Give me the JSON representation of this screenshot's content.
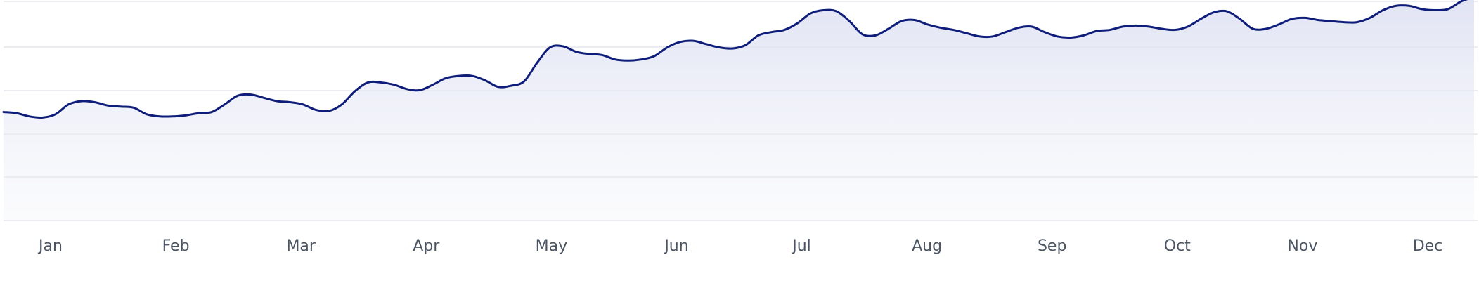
{
  "chart_data": {
    "type": "area",
    "title": "",
    "xlabel": "",
    "ylabel": "",
    "grid": true,
    "ylim": [
      0,
      100
    ],
    "x_tick_labels": [
      "Jan",
      "Feb",
      "Mar",
      "Apr",
      "May",
      "Jun",
      "Jul",
      "Aug",
      "Sep",
      "Oct",
      "Nov",
      "Dec"
    ],
    "colors": {
      "line": "#0f1d7a",
      "fill": "#e3e5f5",
      "grid": "#e5e7eb"
    },
    "series": [
      {
        "values": [
          49.5,
          49,
          47.5,
          47,
          48.5,
          53,
          54.5,
          54,
          52.5,
          52,
          51.5,
          48.5,
          47.5,
          47.5,
          48,
          49,
          49.5,
          53,
          57,
          57.5,
          56,
          54.5,
          54,
          53,
          50.5,
          50,
          53,
          59,
          63,
          63,
          62,
          60,
          59.5,
          62,
          65,
          66,
          66,
          64,
          61,
          61.5,
          63.5,
          72,
          79,
          79.5,
          77,
          76,
          75.5,
          73.5,
          73,
          73.5,
          75,
          79,
          81.5,
          82,
          80.5,
          79,
          78.5,
          80,
          84.5,
          86,
          87,
          90,
          94.5,
          96,
          95.5,
          91,
          85,
          84.5,
          87.5,
          91,
          91.5,
          89.5,
          88,
          87,
          85.5,
          84,
          84,
          86,
          88,
          88.5,
          86,
          84,
          83.5,
          84.5,
          86.5,
          87,
          88.5,
          89,
          88.5,
          87.5,
          87,
          88.5,
          92,
          95,
          95.5,
          92,
          87.5,
          87.5,
          89.5,
          92,
          92.5,
          91.5,
          91,
          90.5,
          90.5,
          92.5,
          96,
          98,
          98,
          96.5,
          96,
          96.5,
          100,
          102
        ]
      }
    ]
  }
}
